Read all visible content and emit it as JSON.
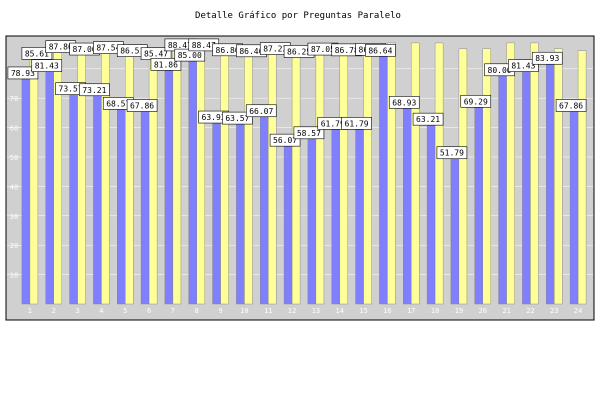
{
  "colors": {
    "page_background": "#ffffff",
    "plot_background": "#d0d0d0",
    "series_a": "#8080ff",
    "series_b": "#ffff99",
    "bar_outline": "#7a7a7a",
    "label_background": "#ffffff",
    "label_text": "#000000",
    "tick_text": "#ffffff",
    "grid": "#ffffff"
  },
  "chart_data": {
    "type": "bar",
    "title": "Detalle Gráfico por Preguntas Paralelo",
    "xlabel": "",
    "ylabel": "",
    "ylim": [
      0,
      100
    ],
    "y_ticks": [
      10,
      20,
      30,
      40,
      50,
      60,
      70,
      80
    ],
    "grid": true,
    "legend": "none",
    "categories": [
      "1",
      "2",
      "3",
      "4",
      "5",
      "6",
      "7",
      "8",
      "9",
      "10",
      "11",
      "12",
      "13",
      "14",
      "15",
      "16",
      "17",
      "18",
      "19",
      "20",
      "21",
      "22",
      "23",
      "24"
    ],
    "series": [
      {
        "values": [
          78.93,
          81.43,
          73.57,
          73.21,
          68.57,
          67.86,
          81.86,
          85.0,
          63.93,
          63.57,
          66.07,
          56.07,
          58.57,
          61.79,
          61.79,
          86.64,
          68.93,
          63.21,
          51.79,
          69.29,
          80.0,
          81.43,
          83.93,
          67.86
        ]
      },
      {
        "values": [
          85.61,
          87.86,
          87.06,
          87.54,
          86.51,
          85.47,
          88.47,
          88.47,
          86.8,
          86.46,
          87.23,
          86.25,
          87.05,
          86.78,
          86.94,
          88.8,
          88.8,
          88.8,
          86.8,
          86.8,
          88.8,
          88.8,
          86.8,
          86.15
        ]
      }
    ],
    "data_labels": [
      {
        "series": 0,
        "index": 0,
        "text": "78.93"
      },
      {
        "series": 1,
        "index": 0,
        "text": "85.61"
      },
      {
        "series": 0,
        "index": 1,
        "text": "81.43"
      },
      {
        "series": 1,
        "index": 1,
        "text": "87.86"
      },
      {
        "series": 0,
        "index": 2,
        "text": "73.57"
      },
      {
        "series": 1,
        "index": 2,
        "text": "87.06"
      },
      {
        "series": 0,
        "index": 3,
        "text": "73.21"
      },
      {
        "series": 1,
        "index": 3,
        "text": "87.54"
      },
      {
        "series": 0,
        "index": 4,
        "text": "68.57"
      },
      {
        "series": 1,
        "index": 4,
        "text": "86.51"
      },
      {
        "series": 0,
        "index": 5,
        "text": "67.86"
      },
      {
        "series": 1,
        "index": 5,
        "text": "85.47"
      },
      {
        "series": 0,
        "index": 6,
        "text": "81.86"
      },
      {
        "series": 1,
        "index": 6,
        "text": "88.47"
      },
      {
        "series": 0,
        "index": 7,
        "text": "85.00"
      },
      {
        "series": 1,
        "index": 7,
        "text": "88.47"
      },
      {
        "series": 0,
        "index": 8,
        "text": "63.93"
      },
      {
        "series": 1,
        "index": 8,
        "text": "86.80"
      },
      {
        "series": 0,
        "index": 9,
        "text": "63.57"
      },
      {
        "series": 1,
        "index": 9,
        "text": "86.46"
      },
      {
        "series": 0,
        "index": 10,
        "text": "66.07"
      },
      {
        "series": 1,
        "index": 10,
        "text": "87.23"
      },
      {
        "series": 0,
        "index": 11,
        "text": "56.07"
      },
      {
        "series": 1,
        "index": 11,
        "text": "86.25"
      },
      {
        "series": 0,
        "index": 12,
        "text": "58.57"
      },
      {
        "series": 1,
        "index": 12,
        "text": "87.05"
      },
      {
        "series": 0,
        "index": 13,
        "text": "61.79"
      },
      {
        "series": 1,
        "index": 13,
        "text": "86.78"
      },
      {
        "series": 0,
        "index": 14,
        "text": "61.79"
      },
      {
        "series": 1,
        "index": 14,
        "text": "86.94"
      },
      {
        "series": 0,
        "index": 15,
        "text": "86.64"
      },
      {
        "series": 0,
        "index": 16,
        "text": "68.93"
      },
      {
        "series": 0,
        "index": 17,
        "text": "63.21"
      },
      {
        "series": 0,
        "index": 18,
        "text": "51.79"
      },
      {
        "series": 0,
        "index": 19,
        "text": "69.29"
      },
      {
        "series": 0,
        "index": 20,
        "text": "80.00"
      },
      {
        "series": 0,
        "index": 21,
        "text": "81.43"
      },
      {
        "series": 0,
        "index": 22,
        "text": "83.93"
      },
      {
        "series": 0,
        "index": 23,
        "text": "67.86"
      }
    ]
  }
}
